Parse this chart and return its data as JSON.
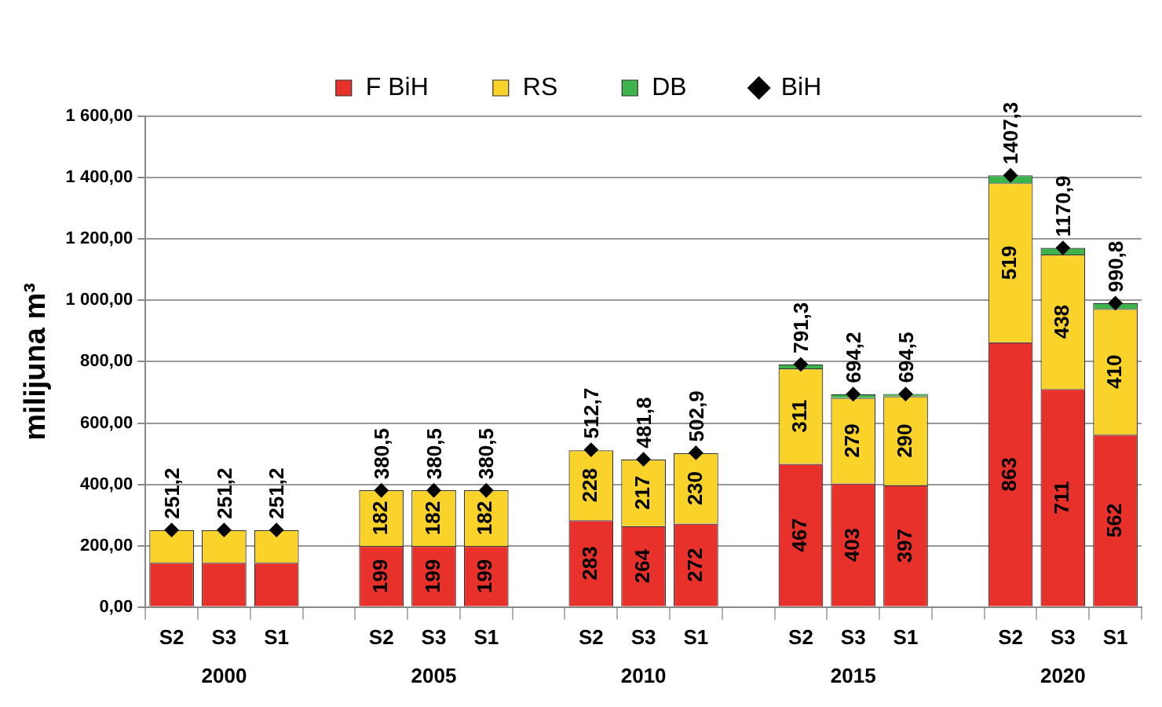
{
  "chart_data": {
    "type": "bar",
    "stacked": true,
    "ylabel": "milijuna m³",
    "categories": [
      "S2",
      "S3",
      "S1",
      null,
      "S2",
      "S3",
      "S1",
      null,
      "S2",
      "S3",
      "S1",
      null,
      "S2",
      "S3",
      "S1",
      null,
      "S2",
      "S3",
      "S1"
    ],
    "annotations": [
      "2000",
      "2005",
      "2010",
      "2015",
      "2020"
    ],
    "series": [
      {
        "name": "F BiH",
        "color": "#e8312a",
        "values": [
          145,
          145,
          145,
          null,
          199,
          199,
          199,
          null,
          283,
          264,
          272,
          null,
          467,
          403,
          397,
          null,
          863,
          711,
          562
        ],
        "value_labels": [
          null,
          null,
          null,
          null,
          "199",
          "199",
          "199",
          null,
          "283",
          "264",
          "272",
          null,
          "467",
          "403",
          "397",
          null,
          "863",
          "711",
          "562"
        ]
      },
      {
        "name": "RS",
        "color": "#f9d22a",
        "values": [
          106,
          106,
          106,
          null,
          182,
          182,
          182,
          null,
          228,
          217,
          230,
          null,
          311,
          279,
          290,
          null,
          519,
          438,
          410
        ],
        "value_labels": [
          null,
          null,
          null,
          null,
          "182",
          "182",
          "182",
          null,
          "228",
          "217",
          "230",
          null,
          "311",
          "279",
          "290",
          null,
          "519",
          "438",
          "410"
        ]
      },
      {
        "name": "DB",
        "color": "#3cb44b",
        "values": [
          null,
          null,
          null,
          null,
          null,
          null,
          null,
          null,
          null,
          null,
          null,
          null,
          13,
          12,
          8,
          null,
          25,
          22,
          19
        ]
      },
      {
        "name": "BiH",
        "type": "scatter",
        "color": "#000000",
        "marker": "diamond",
        "values": [
          251.2,
          251.2,
          251.2,
          null,
          380.5,
          380.5,
          380.5,
          null,
          512.7,
          481.8,
          502.9,
          null,
          791.3,
          694.2,
          694.5,
          null,
          1407.3,
          1170.9,
          990.8
        ],
        "value_labels": [
          "251,2",
          "251,2",
          "251,2",
          null,
          "380,5",
          "380,5",
          "380,5",
          null,
          "512,7",
          "481,8",
          "502,9",
          null,
          "791,3",
          "694,2",
          "694,5",
          null,
          "1407,3",
          "1170,9",
          "990,8"
        ]
      }
    ],
    "ylim": [
      0,
      1600
    ],
    "yticks": [
      {
        "value": 0,
        "label": "0,00"
      },
      {
        "value": 200,
        "label": "200,00"
      },
      {
        "value": 400,
        "label": "400,00"
      },
      {
        "value": 600,
        "label": "600,00"
      },
      {
        "value": 800,
        "label": "800,00"
      },
      {
        "value": 1000,
        "label": "1 000,00"
      },
      {
        "value": 1200,
        "label": "1 200,00"
      },
      {
        "value": 1400,
        "label": "1 400,00"
      },
      {
        "value": 1600,
        "label": "1 600,00"
      }
    ],
    "grid": "y",
    "legend": "top"
  }
}
